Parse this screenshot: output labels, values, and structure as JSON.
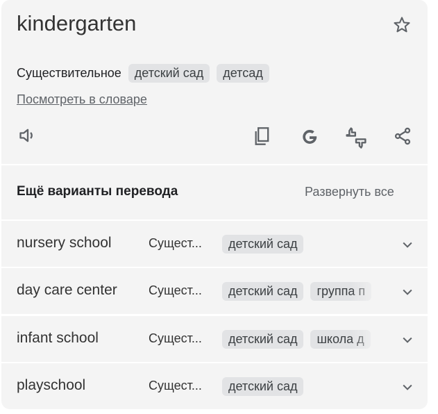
{
  "entry": {
    "word": "kindergarten",
    "pos": "Существительное",
    "translations": [
      "детский сад",
      "детсад"
    ],
    "dictionary_link": "Посмотреть в словаре"
  },
  "actions": {
    "listen": "speaker-icon",
    "copy": "copy-icon",
    "google": "google-icon",
    "feedback": "feedback-icon",
    "share": "share-icon",
    "favorite": "star-icon"
  },
  "more": {
    "title": "Ещё варианты перевода",
    "expand_all": "Развернуть все"
  },
  "rows": [
    {
      "word": "nursery school",
      "pos": "Сущест...",
      "chips": [
        "детский сад"
      ]
    },
    {
      "word": "day care center",
      "pos": "Сущест...",
      "chips": [
        "детский сад",
        "группа п"
      ]
    },
    {
      "word": "infant school",
      "pos": "Сущест...",
      "chips": [
        "детский сад",
        "школа д"
      ]
    },
    {
      "word": "playschool",
      "pos": "Сущест...",
      "chips": [
        "детский сад"
      ]
    }
  ]
}
